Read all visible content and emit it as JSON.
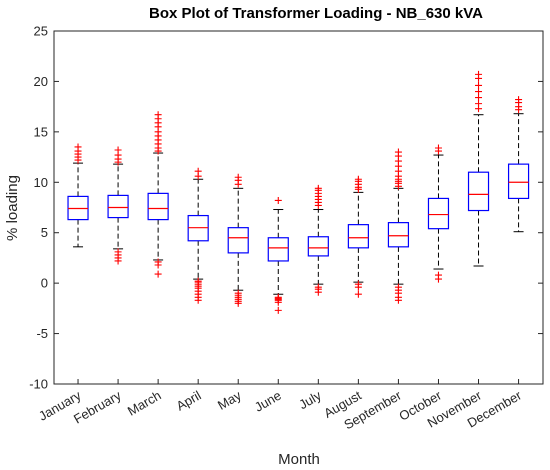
{
  "chart_data": {
    "type": "box",
    "title": "Box Plot of Transformer Loading - NB_630 kVA",
    "xlabel": "Month",
    "ylabel": "% loading",
    "ylim": [
      -10,
      25
    ],
    "yticks": [
      -10,
      -5,
      0,
      5,
      10,
      15,
      20,
      25
    ],
    "grid": false,
    "colors": {
      "box": "#0000ff",
      "median": "#ff0000",
      "outlier": "#ff0000",
      "whisker": "#000000"
    },
    "categories": [
      "January",
      "February",
      "March",
      "April",
      "May",
      "June",
      "July",
      "August",
      "September",
      "October",
      "November",
      "December"
    ],
    "boxes": [
      {
        "q1": 6.3,
        "median": 7.4,
        "q3": 8.6,
        "whisker_low": 3.6,
        "whisker_high": 11.9,
        "outliers": [
          12.2,
          12.5,
          12.8,
          13.1,
          13.5
        ]
      },
      {
        "q1": 6.5,
        "median": 7.5,
        "q3": 8.7,
        "whisker_low": 3.4,
        "whisker_high": 11.8,
        "outliers": [
          2.2,
          2.5,
          2.8,
          3.1,
          12.0,
          12.3,
          12.7,
          13.2
        ]
      },
      {
        "q1": 6.3,
        "median": 7.4,
        "q3": 8.9,
        "whisker_low": 2.3,
        "whisker_high": 12.9,
        "outliers": [
          0.9,
          1.8,
          2.1,
          13.1,
          13.4,
          13.8,
          14.2,
          14.6,
          15.0,
          15.5,
          15.9,
          16.3,
          16.7
        ]
      },
      {
        "q1": 4.2,
        "median": 5.5,
        "q3": 6.7,
        "whisker_low": 0.4,
        "whisker_high": 10.3,
        "outliers": [
          -1.7,
          -1.4,
          -1.1,
          -0.8,
          -0.5,
          -0.3,
          -0.1,
          0.1,
          0.2,
          10.6,
          11.1
        ]
      },
      {
        "q1": 3.0,
        "median": 4.5,
        "q3": 5.5,
        "whisker_low": -0.7,
        "whisker_high": 9.4,
        "outliers": [
          -2.0,
          -1.8,
          -1.6,
          -1.4,
          -1.2,
          -1.0,
          9.8,
          10.2,
          10.5
        ]
      },
      {
        "q1": 2.2,
        "median": 3.5,
        "q3": 4.5,
        "whisker_low": -1.1,
        "whisker_high": 7.3,
        "outliers": [
          -2.7,
          -1.9,
          -1.7,
          -1.6,
          -1.5,
          -1.4,
          8.2
        ]
      },
      {
        "q1": 2.7,
        "median": 3.5,
        "q3": 4.6,
        "whisker_low": -0.1,
        "whisker_high": 7.3,
        "outliers": [
          -0.9,
          -0.6,
          -0.4,
          7.7,
          8.0,
          8.3,
          8.6,
          8.9,
          9.2,
          9.4
        ]
      },
      {
        "q1": 3.5,
        "median": 4.5,
        "q3": 5.8,
        "whisker_low": 0.1,
        "whisker_high": 9.0,
        "outliers": [
          -1.1,
          -0.4,
          -0.1,
          9.3,
          9.5,
          9.8,
          10.1,
          10.3
        ]
      },
      {
        "q1": 3.6,
        "median": 4.7,
        "q3": 6.0,
        "whisker_low": -0.1,
        "whisker_high": 9.4,
        "outliers": [
          -1.7,
          -1.4,
          -1.0,
          -0.7,
          -0.4,
          9.6,
          9.9,
          10.1,
          10.3,
          10.6,
          11.1,
          11.6,
          12.1,
          12.6,
          13.0
        ]
      },
      {
        "q1": 5.4,
        "median": 6.8,
        "q3": 8.4,
        "whisker_low": 1.4,
        "whisker_high": 12.7,
        "outliers": [
          0.4,
          0.8,
          13.1,
          13.4
        ]
      },
      {
        "q1": 7.2,
        "median": 8.8,
        "q3": 11.0,
        "whisker_low": 1.7,
        "whisker_high": 16.7,
        "outliers": [
          17.3,
          17.8,
          18.4,
          19.0,
          19.6,
          20.3,
          20.7
        ]
      },
      {
        "q1": 8.4,
        "median": 10.0,
        "q3": 11.8,
        "whisker_low": 5.1,
        "whisker_high": 16.8,
        "outliers": [
          17.2,
          17.5,
          17.9,
          18.2
        ]
      }
    ]
  }
}
